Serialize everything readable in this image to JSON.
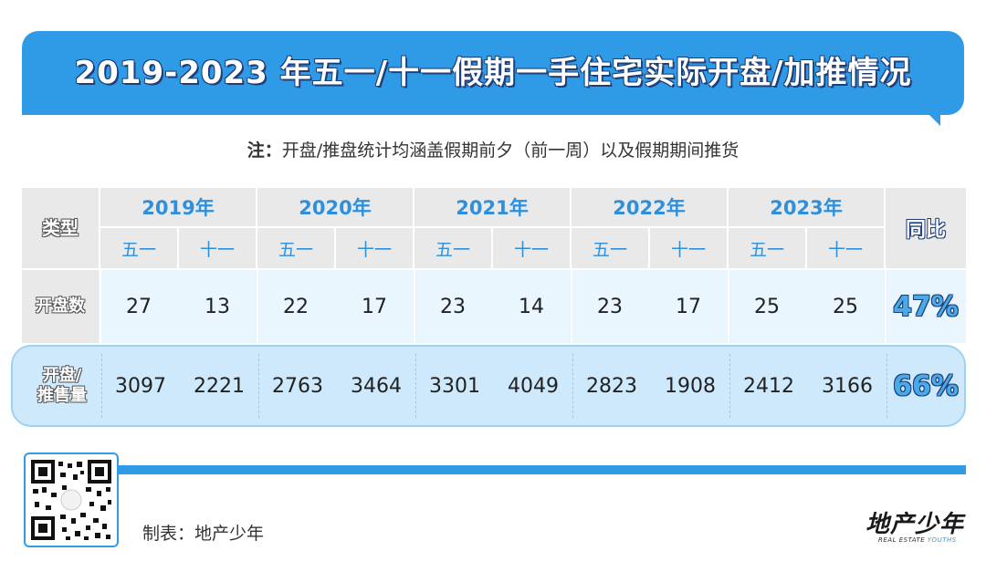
{
  "title": "2019-2023 年五一/十一假期一手住宅实际开盘/加推情况",
  "note": {
    "label": "注：",
    "text": "开盘/推盘统计均涵盖假期前夕（前一周）以及假期期间推货"
  },
  "table": {
    "type_header": "类型",
    "yoy_header": "同比",
    "years": [
      "2019年",
      "2020年",
      "2021年",
      "2022年",
      "2023年"
    ],
    "holidays": [
      "五一",
      "十一"
    ],
    "rows": [
      {
        "label_line1": "开盘数",
        "label_line2": "",
        "values": [
          "27",
          "13",
          "22",
          "17",
          "23",
          "14",
          "23",
          "17",
          "25",
          "25"
        ],
        "yoy": "47%"
      },
      {
        "label_line1": "开盘/",
        "label_line2": "推售量",
        "values": [
          "3097",
          "2221",
          "2763",
          "3464",
          "3301",
          "4049",
          "2823",
          "1908",
          "2412",
          "3166"
        ],
        "yoy": "66%"
      }
    ]
  },
  "footer": {
    "credit": "制表：地产少年",
    "logo_main": "地产少年",
    "logo_sub_1": "REAL ESTATE ",
    "logo_sub_2": "YOUTHS"
  },
  "colors": {
    "accent": "#2f9be6",
    "header_bg": "#e9e9e9",
    "row1_bg": "#e9f6fd",
    "row2_bg": "#cde9fb"
  }
}
